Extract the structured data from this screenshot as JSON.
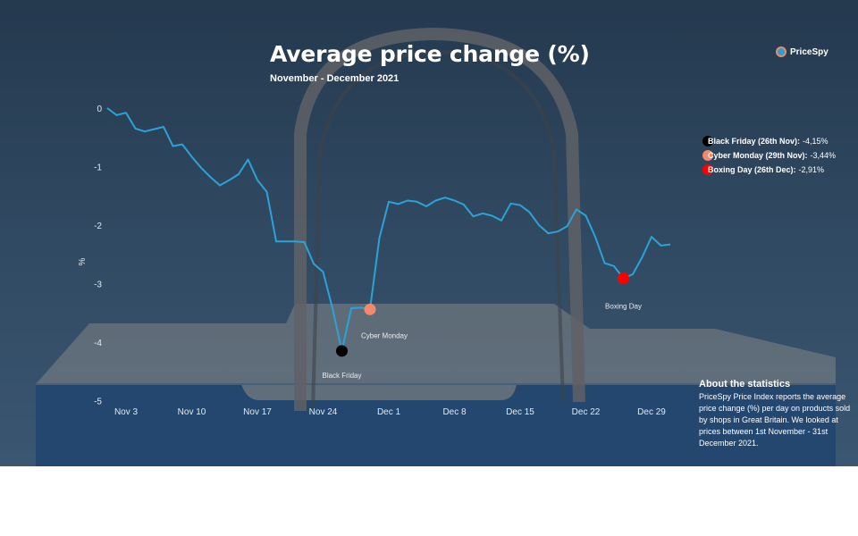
{
  "header": {
    "title": "Average price change (%)",
    "subtitle": "November - December 2021",
    "brand": "PriceSpy"
  },
  "legend": [
    {
      "label": "Black Friday (26th Nov):",
      "value": "-4,15%",
      "color": "#000000"
    },
    {
      "label": "Cyber Monday (29th Nov):",
      "value": "-3,44%",
      "color": "#f2896b"
    },
    {
      "label": "Boxing Day (26th Dec):",
      "value": "-2,91%",
      "color": "#ff0000"
    }
  ],
  "about": {
    "title": "About the statistics",
    "body": "PriceSpy Price Index reports the average price change (%) per day on products sold by shops in Great Britain. We looked at prices between 1st November - 31st December 2021."
  },
  "colors": {
    "line": "#2aa3d8",
    "background": "#2f4860",
    "black_friday": "#000000",
    "cyber_monday": "#f2896b",
    "boxing_day": "#ff0000"
  },
  "chart_data": {
    "type": "line",
    "title": "Average price change (%)",
    "subtitle": "November - December 2021",
    "ylabel": "%",
    "xlabel": "",
    "ylim": [
      -5,
      0
    ],
    "y_ticks": [
      0,
      -1,
      -2,
      -3,
      -4,
      -5
    ],
    "x_tick_labels": [
      "Nov 3",
      "Nov 10",
      "Nov 17",
      "Nov 24",
      "Dec 1",
      "Dec 8",
      "Dec 15",
      "Dec 22",
      "Dec 29"
    ],
    "x_tick_days": [
      3,
      10,
      17,
      24,
      31,
      38,
      45,
      52,
      59
    ],
    "grid": false,
    "legend_position": "right",
    "series": [
      {
        "x": [
          1,
          2,
          3,
          4,
          5,
          6,
          7,
          8,
          9,
          10,
          11,
          12,
          13,
          14,
          15,
          16,
          17,
          18,
          19,
          20,
          21,
          22,
          23,
          24,
          25,
          26,
          27,
          28,
          29,
          30,
          31,
          32,
          33,
          34,
          35,
          36,
          37,
          38,
          39,
          40,
          41,
          42,
          43,
          44,
          45,
          46,
          47,
          48,
          49,
          50,
          51,
          52,
          53,
          54,
          55,
          56,
          57,
          58,
          59,
          60,
          61
        ],
        "y": [
          0,
          -0.12,
          -0.08,
          -0.35,
          -0.4,
          -0.36,
          -0.32,
          -0.65,
          -0.62,
          -0.83,
          -1.02,
          -1.18,
          -1.32,
          -1.23,
          -1.13,
          -0.88,
          -1.23,
          -1.43,
          -2.28,
          -2.28,
          -2.28,
          -2.29,
          -2.66,
          -2.8,
          -3.42,
          -4.15,
          -3.42,
          -3.41,
          -3.44,
          -2.22,
          -1.6,
          -1.64,
          -1.58,
          -1.6,
          -1.68,
          -1.58,
          -1.53,
          -1.58,
          -1.65,
          -1.85,
          -1.8,
          -1.84,
          -1.92,
          -1.63,
          -1.66,
          -1.78,
          -2.0,
          -2.14,
          -2.11,
          -2.02,
          -1.73,
          -1.84,
          -2.2,
          -2.65,
          -2.7,
          -2.91,
          -2.84,
          -2.55,
          -2.2,
          -2.35,
          -2.33
        ]
      }
    ],
    "highlights": [
      {
        "label": "Black Friday",
        "x": 26,
        "y": -4.15,
        "color": "#000000",
        "label_position": "below"
      },
      {
        "label": "Cyber Monday",
        "x": 29,
        "y": -3.44,
        "color": "#f2896b",
        "label_position": "below"
      },
      {
        "label": "Boxing Day",
        "x": 56,
        "y": -2.91,
        "color": "#ff0000",
        "label_position": "below"
      }
    ]
  }
}
